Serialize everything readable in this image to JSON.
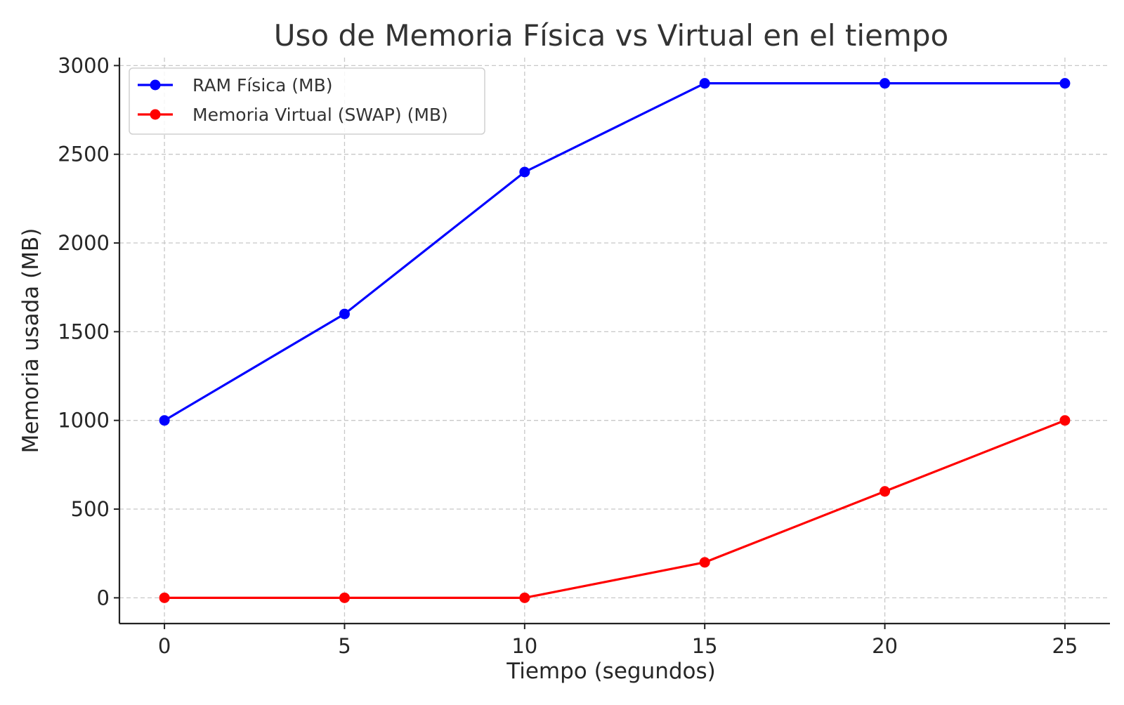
{
  "chart_data": {
    "type": "line",
    "title": "Uso de Memoria Física vs Virtual en el tiempo",
    "xlabel": "Tiempo (segundos)",
    "ylabel": "Memoria usada (MB)",
    "x": [
      0,
      5,
      10,
      15,
      20,
      25
    ],
    "x_ticks": [
      "0",
      "5",
      "10",
      "15",
      "20",
      "25"
    ],
    "y_ticks": [
      "0",
      "500",
      "1000",
      "1500",
      "2000",
      "2500",
      "3000"
    ],
    "xlim": [
      -1.25,
      26.25
    ],
    "ylim": [
      -145,
      3045
    ],
    "grid": true,
    "legend_position": "top-left",
    "series": [
      {
        "name": "RAM Física (MB)",
        "color": "#0000ff",
        "marker": "circle",
        "values": [
          1000,
          1600,
          2400,
          2900,
          2900,
          2900
        ]
      },
      {
        "name": "Memoria Virtual (SWAP) (MB)",
        "color": "#ff0000",
        "marker": "circle",
        "values": [
          0,
          0,
          0,
          200,
          600,
          1000
        ]
      }
    ]
  }
}
